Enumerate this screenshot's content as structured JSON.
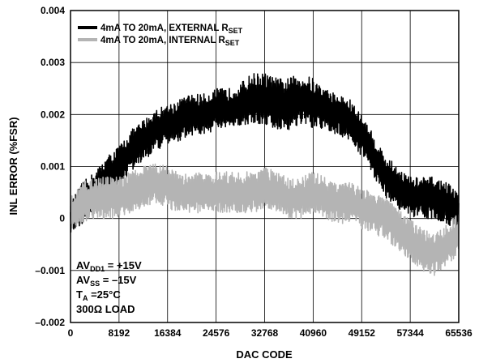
{
  "chart_data": {
    "type": "line",
    "title": "",
    "xlabel": "DAC CODE",
    "ylabel": "INL ERROR (%FSR)",
    "xlim": [
      0,
      65536
    ],
    "ylim": [
      -0.002,
      0.004
    ],
    "x_ticks": [
      0,
      8192,
      16384,
      24576,
      32768,
      40960,
      49152,
      57344,
      65536
    ],
    "x_tick_labels": [
      "0",
      "8192",
      "16384",
      "24576",
      "32768",
      "40960",
      "49152",
      "57344",
      "65536"
    ],
    "y_ticks": [
      -0.002,
      -0.001,
      0,
      0.001,
      0.002,
      0.003,
      0.004
    ],
    "y_tick_labels": [
      "–0.002",
      "–0.001",
      "0",
      "0.001",
      "0.002",
      "0.003",
      "0.004"
    ],
    "grid": true,
    "legend_position": "top-left",
    "series": [
      {
        "name_main": "4mA TO 20mA, EXTERNAL R",
        "name_sub": "SET",
        "color": "#000000",
        "x": [
          0,
          2048,
          4096,
          6144,
          8192,
          10240,
          12288,
          14336,
          16384,
          18432,
          20480,
          22528,
          24576,
          26624,
          28672,
          30720,
          32768,
          34816,
          36864,
          38912,
          40960,
          43008,
          45056,
          47104,
          49152,
          51200,
          53248,
          55296,
          57344,
          59392,
          61440,
          63488,
          65536
        ],
        "center": [
          0.0,
          0.0003,
          0.0005,
          0.0008,
          0.001,
          0.0013,
          0.0015,
          0.0017,
          0.0018,
          0.0019,
          0.002,
          0.002,
          0.0021,
          0.0021,
          0.0022,
          0.0023,
          0.0023,
          0.0022,
          0.0022,
          0.0023,
          0.0022,
          0.0021,
          0.002,
          0.0019,
          0.0016,
          0.0012,
          0.0008,
          0.0006,
          0.0004,
          0.0004,
          0.0004,
          0.0003,
          0.0001
        ],
        "amplitude": [
          0.0003,
          0.0004,
          0.0004,
          0.0004,
          0.0004,
          0.0004,
          0.0004,
          0.0004,
          0.0004,
          0.0004,
          0.0004,
          0.0004,
          0.0004,
          0.0004,
          0.0004,
          0.0005,
          0.0005,
          0.0005,
          0.0005,
          0.0005,
          0.0005,
          0.0004,
          0.0004,
          0.0004,
          0.0004,
          0.0004,
          0.0004,
          0.0004,
          0.0004,
          0.0004,
          0.0004,
          0.0004,
          0.0004
        ]
      },
      {
        "name_main": "4mA TO 20mA, INTERNAL R",
        "name_sub": "SET",
        "color": "#b4b4b4",
        "x": [
          0,
          2048,
          4096,
          6144,
          8192,
          10240,
          12288,
          14336,
          16384,
          18432,
          20480,
          22528,
          24576,
          26624,
          28672,
          30720,
          32768,
          34816,
          36864,
          38912,
          40960,
          43008,
          45056,
          47104,
          49152,
          51200,
          53248,
          55296,
          57344,
          59392,
          61440,
          63488,
          65536
        ],
        "center": [
          0.0001,
          0.0003,
          0.0004,
          0.0004,
          0.0004,
          0.0005,
          0.0006,
          0.0007,
          0.0006,
          0.0005,
          0.0005,
          0.0005,
          0.0005,
          0.0005,
          0.0005,
          0.0005,
          0.0006,
          0.0005,
          0.0004,
          0.0004,
          0.0005,
          0.0004,
          0.0003,
          0.0003,
          0.0002,
          0.0001,
          0.0,
          -0.0002,
          -0.0004,
          -0.0006,
          -0.0007,
          -0.0005,
          -0.0003
        ],
        "amplitude": [
          0.0003,
          0.0004,
          0.0004,
          0.0004,
          0.0004,
          0.0004,
          0.0004,
          0.0004,
          0.0004,
          0.0004,
          0.0004,
          0.0004,
          0.0004,
          0.0004,
          0.0004,
          0.0004,
          0.0004,
          0.0004,
          0.0004,
          0.0004,
          0.0004,
          0.0004,
          0.0004,
          0.0004,
          0.0004,
          0.0004,
          0.0004,
          0.0004,
          0.0004,
          0.0004,
          0.0004,
          0.0004,
          0.0004
        ]
      }
    ],
    "annotations": [
      {
        "main": "AV",
        "sub": "DD1",
        "rest": " = +15V"
      },
      {
        "main": "AV",
        "sub": "SS",
        "rest": " = –15V"
      },
      {
        "main": "T",
        "sub": "A",
        "rest": " =25°C"
      },
      {
        "main": "300Ω LOAD",
        "sub": "",
        "rest": ""
      }
    ]
  }
}
